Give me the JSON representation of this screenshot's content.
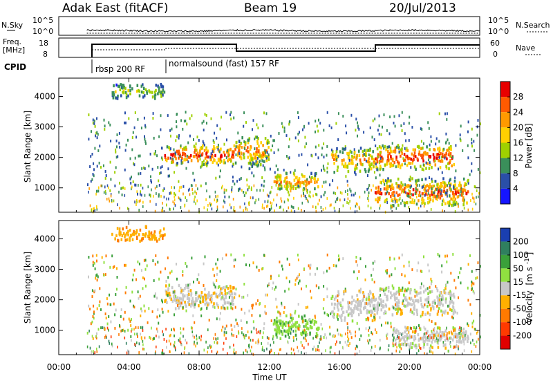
{
  "header": {
    "station": "Adak East (fitACF)",
    "beam": "Beam 19",
    "date": "20/Jul/2013"
  },
  "top_panel": {
    "nsky_label": "N.Sky",
    "nsky_ticks": [
      "10^5",
      "10^0"
    ],
    "nsearch_ticks": [
      "10^5",
      "10^0"
    ],
    "nsearch_label": "N.Search",
    "freq_label_1": "Freq.",
    "freq_label_2": "[MHz]",
    "freq_ticks": [
      "18",
      "8"
    ],
    "nave_ticks": [
      "60",
      "0"
    ],
    "nave_label": "Nave",
    "cpid_label": "CPID",
    "programs": [
      "rbsp 200 RF",
      "normalsound (fast) 157 RF"
    ]
  },
  "power_colorbar": {
    "title": "Power [dB]",
    "tick_labels": [
      "28",
      "24",
      "20",
      "16",
      "12",
      "8",
      "4"
    ],
    "colors": [
      "#e80000",
      "#ff5a00",
      "#ff9a00",
      "#ffd000",
      "#9fd000",
      "#3a8f5a",
      "#2a4fa8",
      "#1515ff"
    ]
  },
  "velocity_colorbar": {
    "title_1": "Velocity",
    "title_2": "[m s",
    "title_sup": "-1",
    "title_3": "]",
    "tick_labels": [
      "200",
      "100",
      "50",
      "15",
      "-15",
      "-50",
      "-100",
      "-200"
    ],
    "colors": [
      "#1a3fb0",
      "#2f7f5f",
      "#3aa03a",
      "#90e040",
      "#c8c8c8",
      "#ffb000",
      "#ff7a00",
      "#ff3a00",
      "#e00000"
    ]
  },
  "chart_data": [
    {
      "type": "heatmap",
      "panel": "power",
      "xlabel": "",
      "ylabel": "Slant Range [km]",
      "ylim": [
        200,
        4600
      ],
      "y_ticks": [
        "1000",
        "2000",
        "3000",
        "4000"
      ],
      "xlim": [
        "00:00",
        "24:00"
      ],
      "x_ticks": [
        "00:00",
        "04:00",
        "08:00",
        "12:00",
        "16:00",
        "20:00",
        "00:00"
      ],
      "data_start_hour": 1.6,
      "echo_regions": [
        {
          "t0": 6.0,
          "t1": 10.0,
          "r0": 1750,
          "r1": 2400,
          "power_db": 28
        },
        {
          "t0": 10.0,
          "t1": 12.0,
          "r0": 1700,
          "r1": 2700,
          "power_db": 22
        },
        {
          "t0": 12.2,
          "t1": 14.8,
          "r0": 900,
          "r1": 1500,
          "power_db": 22
        },
        {
          "t0": 15.5,
          "t1": 18.0,
          "r0": 1500,
          "r1": 2300,
          "power_db": 20
        },
        {
          "t0": 18.0,
          "t1": 22.5,
          "r0": 1600,
          "r1": 2400,
          "power_db": 28
        },
        {
          "t0": 18.0,
          "t1": 23.3,
          "r0": 400,
          "r1": 1300,
          "power_db": 26
        },
        {
          "t0": 3.0,
          "t1": 6.0,
          "r0": 3900,
          "r1": 4400,
          "power_db": 12
        }
      ]
    },
    {
      "type": "heatmap",
      "panel": "velocity",
      "xlabel": "Time UT",
      "ylabel": "Slant Range [km]",
      "ylim": [
        200,
        4600
      ],
      "y_ticks": [
        "1000",
        "2000",
        "3000",
        "4000"
      ],
      "xlim": [
        "00:00",
        "24:00"
      ],
      "x_ticks": [
        "00:00",
        "04:00",
        "08:00",
        "12:00",
        "16:00",
        "20:00",
        "00:00"
      ],
      "data_start_hour": 1.6,
      "echo_regions": [
        {
          "t0": 6.0,
          "t1": 10.0,
          "r0": 1700,
          "r1": 2500,
          "velocity": -10
        },
        {
          "t0": 12.2,
          "t1": 14.8,
          "r0": 700,
          "r1": 1500,
          "velocity": 40
        },
        {
          "t0": 15.5,
          "t1": 18.0,
          "r0": 1300,
          "r1": 2300,
          "velocity": 0
        },
        {
          "t0": 18.0,
          "t1": 22.5,
          "r0": 1500,
          "r1": 2400,
          "velocity": 0
        },
        {
          "t0": 19.0,
          "t1": 23.3,
          "r0": 400,
          "r1": 1100,
          "velocity": 0
        },
        {
          "t0": 3.0,
          "t1": 6.0,
          "r0": 3900,
          "r1": 4400,
          "velocity": -40
        }
      ]
    }
  ]
}
